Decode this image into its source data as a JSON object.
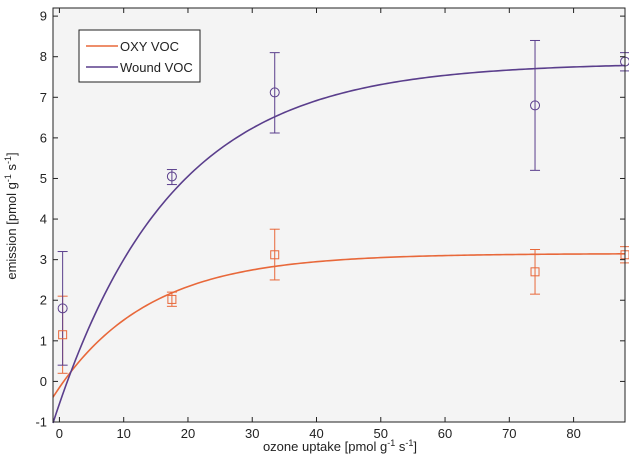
{
  "chart_data": {
    "type": "scatter",
    "xlabel": {
      "main": "ozone uptake [pmol g",
      "sup1": "-1",
      "mid": " s",
      "sup2": "-1",
      "end": "]"
    },
    "ylabel": {
      "main": "emission  [pmol g",
      "sup1": "-1",
      "mid": " s",
      "sup2": "-1",
      "end": "]"
    },
    "xlim": [
      -1,
      88
    ],
    "ylim": [
      -1,
      9.2
    ],
    "xticks": [
      0,
      10,
      20,
      30,
      40,
      50,
      60,
      70,
      80
    ],
    "yticks": [
      -1,
      0,
      1,
      2,
      3,
      4,
      5,
      6,
      7,
      8,
      9
    ],
    "grid": false,
    "legend_position": "top-left",
    "background": "#f4f4f4",
    "series": [
      {
        "name": "OXY VOC",
        "color": "#e8683a",
        "marker": "square",
        "points": [
          {
            "x": 0.5,
            "y": 1.15,
            "err_low": 0.2,
            "err_high": 2.1
          },
          {
            "x": 17.5,
            "y": 2.02,
            "err_low": 1.85,
            "err_high": 2.2
          },
          {
            "x": 33.5,
            "y": 3.12,
            "err_low": 2.5,
            "err_high": 3.75
          },
          {
            "x": 74,
            "y": 2.7,
            "err_low": 2.15,
            "err_high": 3.25
          },
          {
            "x": 88,
            "y": 3.12,
            "err_low": 2.92,
            "err_high": 3.32
          }
        ],
        "fit": {
          "model": "exponential-saturation",
          "y0": -0.15,
          "ymax": 3.15,
          "k": 0.07
        }
      },
      {
        "name": "Wound VOC",
        "color": "#5a3e8c",
        "marker": "circle",
        "points": [
          {
            "x": 0.5,
            "y": 1.8,
            "err_low": 0.4,
            "err_high": 3.2
          },
          {
            "x": 17.5,
            "y": 5.05,
            "err_low": 4.85,
            "err_high": 5.22
          },
          {
            "x": 33.5,
            "y": 7.12,
            "err_low": 6.12,
            "err_high": 8.1
          },
          {
            "x": 74,
            "y": 6.8,
            "err_low": 5.2,
            "err_high": 8.4
          },
          {
            "x": 88,
            "y": 7.88,
            "err_low": 7.65,
            "err_high": 8.1
          }
        ],
        "fit": {
          "model": "exponential-saturation",
          "y0": -0.55,
          "ymax": 7.85,
          "k": 0.055
        }
      }
    ]
  }
}
